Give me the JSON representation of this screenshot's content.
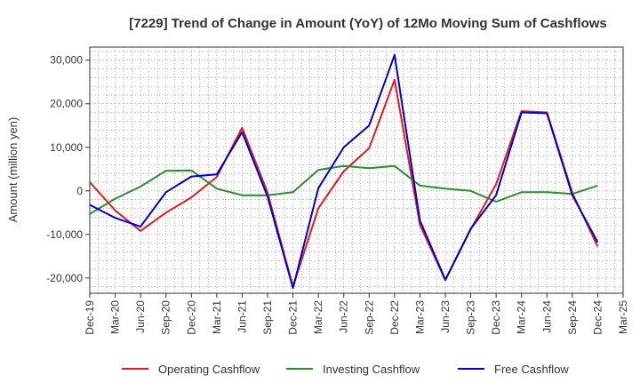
{
  "chart_data": {
    "type": "line",
    "title": "[7229]  Trend of Change in Amount (YoY) of 12Mo Moving Sum of Cashflows",
    "xlabel": "",
    "ylabel": "Amount (million yen)",
    "ylim": [
      -23500,
      33000
    ],
    "yticks": [
      30000,
      20000,
      10000,
      0,
      -10000,
      -20000
    ],
    "ytick_labels": [
      "30,000",
      "20,000",
      "10,000",
      "0",
      "-10,000",
      "-20,000"
    ],
    "categories": [
      "Dec-19",
      "Mar-20",
      "Jun-20",
      "Sep-20",
      "Dec-20",
      "Mar-21",
      "Jun-21",
      "Sep-21",
      "Dec-21",
      "Mar-22",
      "Jun-22",
      "Sep-22",
      "Dec-22",
      "Mar-23",
      "Jun-23",
      "Sep-23",
      "Dec-23",
      "Mar-24",
      "Jun-24",
      "Sep-24",
      "Dec-24",
      "Mar-25"
    ],
    "grid": true,
    "legend_position": "bottom",
    "series": [
      {
        "name": "Operating Cashflow",
        "color": "#e41a1c",
        "values": [
          2000,
          -4500,
          -9200,
          -5000,
          -1500,
          3200,
          14500,
          -400,
          -22000,
          -4000,
          4500,
          9800,
          25500,
          -7800,
          -20500,
          -8800,
          1500,
          18300,
          18000,
          -500,
          -12800,
          null
        ]
      },
      {
        "name": "Investing Cashflow",
        "color": "#2e8b2e",
        "values": [
          -5300,
          -1800,
          1000,
          4600,
          4700,
          500,
          -1000,
          -1000,
          -300,
          4800,
          5700,
          5200,
          5700,
          1200,
          500,
          0,
          -2500,
          -300,
          -300,
          -700,
          1200,
          null
        ]
      },
      {
        "name": "Free Cashflow",
        "color": "#0000cc",
        "values": [
          -3200,
          -6200,
          -8200,
          -300,
          3300,
          3800,
          13500,
          -1300,
          -22300,
          600,
          10000,
          15000,
          31200,
          -6800,
          -20400,
          -8700,
          -1000,
          18000,
          17800,
          -1000,
          -11800,
          null
        ]
      }
    ]
  }
}
